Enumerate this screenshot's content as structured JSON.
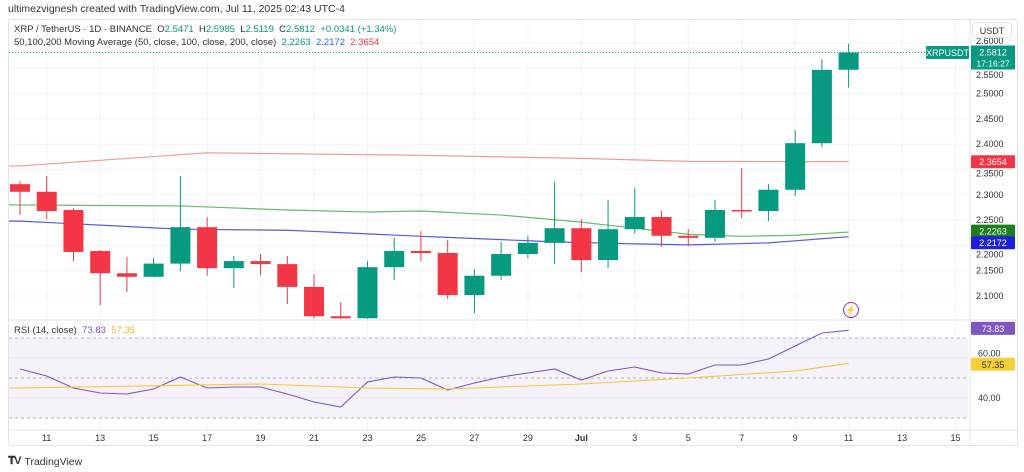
{
  "credit": "ultimezvignesh created with TradingView.com, Jul 11, 2025 02:43 UTC-4",
  "legend": {
    "symbol": "XRP / TetherUS · 1D · BINANCE",
    "o_label": "O",
    "o": "2.5471",
    "h_label": "H",
    "h": "2.5985",
    "l_label": "L",
    "l": "2.5119",
    "c_label": "C",
    "c": "2.5812",
    "change": "+0.0341 (+1.34%)",
    "ma_title": "50,100,200 Moving Average (50, close, 100, close, 200, close)",
    "ma50": "2.2263",
    "ma100": "2.2172",
    "ma200": "2.3654",
    "rsi_title": "RSI (14, close)",
    "rsi": "73.83",
    "rsi_ma": "57.35"
  },
  "price_axis": {
    "currency": "USDT",
    "ticks": [
      "2.1000",
      "2.1500",
      "2.2000",
      "2.2500",
      "2.3000",
      "2.3500",
      "2.4000",
      "2.4500",
      "2.5000",
      "2.5500",
      "2.6000"
    ],
    "symbol_badge": "XRPUSDT",
    "last_price": "2.5812",
    "countdown": "17:16:27",
    "ma200_badge": "2.3654",
    "ma50_badge": "2.2263",
    "ma100_badge": "2.2172"
  },
  "rsi_axis": {
    "ticks": [
      "40.00",
      "60.00"
    ],
    "rsi_badge": "73.83",
    "rsi_ma_badge": "57.35"
  },
  "date_axis": [
    "11",
    "13",
    "15",
    "17",
    "19",
    "21",
    "23",
    "25",
    "27",
    "29",
    "Jul",
    "3",
    "5",
    "7",
    "9",
    "11",
    "13",
    "15"
  ],
  "footer": {
    "logo": "TradingView"
  },
  "colors": {
    "up": "#089981",
    "down": "#f23645",
    "ma50": "#66bb6a",
    "ma100": "#5b5bd6",
    "ma200": "#ef9a9a",
    "rsi": "#7e57c2",
    "rsi_ma": "#f5c842"
  },
  "icons": {
    "alert": "lightning-icon",
    "logo": "tradingview-logo-icon"
  },
  "chart_data": {
    "type": "candlestick",
    "start_date": "2025-06-10",
    "interval": "1D",
    "price_range": [
      2.05,
      2.61
    ],
    "candles": [
      {
        "date": "Jun 10",
        "o": 2.321,
        "h": 2.327,
        "l": 2.26,
        "c": 2.306
      },
      {
        "date": "Jun 11",
        "o": 2.306,
        "h": 2.337,
        "l": 2.252,
        "c": 2.268
      },
      {
        "date": "Jun 12",
        "o": 2.27,
        "h": 2.274,
        "l": 2.169,
        "c": 2.187
      },
      {
        "date": "Jun 13",
        "o": 2.189,
        "h": 2.191,
        "l": 2.082,
        "c": 2.145
      },
      {
        "date": "Jun 14",
        "o": 2.145,
        "h": 2.177,
        "l": 2.108,
        "c": 2.138
      },
      {
        "date": "Jun 15",
        "o": 2.138,
        "h": 2.175,
        "l": 2.137,
        "c": 2.164
      },
      {
        "date": "Jun 16",
        "o": 2.164,
        "h": 2.337,
        "l": 2.149,
        "c": 2.236
      },
      {
        "date": "Jun 17",
        "o": 2.236,
        "h": 2.256,
        "l": 2.14,
        "c": 2.155
      },
      {
        "date": "Jun 18",
        "o": 2.155,
        "h": 2.179,
        "l": 2.116,
        "c": 2.169
      },
      {
        "date": "Jun 19",
        "o": 2.169,
        "h": 2.183,
        "l": 2.141,
        "c": 2.163
      },
      {
        "date": "Jun 20",
        "o": 2.163,
        "h": 2.179,
        "l": 2.084,
        "c": 2.118
      },
      {
        "date": "Jun 21",
        "o": 2.118,
        "h": 2.143,
        "l": 2.055,
        "c": 2.06
      },
      {
        "date": "Jun 22",
        "o": 2.06,
        "h": 2.088,
        "l": 2.055,
        "c": 2.056
      },
      {
        "date": "Jun 23",
        "o": 2.056,
        "h": 2.169,
        "l": 2.055,
        "c": 2.157
      },
      {
        "date": "Jun 24",
        "o": 2.157,
        "h": 2.215,
        "l": 2.132,
        "c": 2.189
      },
      {
        "date": "Jun 25",
        "o": 2.189,
        "h": 2.228,
        "l": 2.169,
        "c": 2.185
      },
      {
        "date": "Jun 26",
        "o": 2.185,
        "h": 2.211,
        "l": 2.094,
        "c": 2.102
      },
      {
        "date": "Jun 27",
        "o": 2.102,
        "h": 2.153,
        "l": 2.066,
        "c": 2.14
      },
      {
        "date": "Jun 28",
        "o": 2.14,
        "h": 2.207,
        "l": 2.132,
        "c": 2.183
      },
      {
        "date": "Jun 29",
        "o": 2.183,
        "h": 2.219,
        "l": 2.175,
        "c": 2.205
      },
      {
        "date": "Jun 30",
        "o": 2.205,
        "h": 2.325,
        "l": 2.163,
        "c": 2.234
      },
      {
        "date": "Jul 1",
        "o": 2.234,
        "h": 2.252,
        "l": 2.147,
        "c": 2.171
      },
      {
        "date": "Jul 2",
        "o": 2.171,
        "h": 2.29,
        "l": 2.155,
        "c": 2.232
      },
      {
        "date": "Jul 3",
        "o": 2.232,
        "h": 2.314,
        "l": 2.224,
        "c": 2.256
      },
      {
        "date": "Jul 4",
        "o": 2.256,
        "h": 2.268,
        "l": 2.197,
        "c": 2.219
      },
      {
        "date": "Jul 5",
        "o": 2.219,
        "h": 2.232,
        "l": 2.199,
        "c": 2.215
      },
      {
        "date": "Jul 6",
        "o": 2.215,
        "h": 2.29,
        "l": 2.207,
        "c": 2.27
      },
      {
        "date": "Jul 7",
        "o": 2.27,
        "h": 2.353,
        "l": 2.254,
        "c": 2.268
      },
      {
        "date": "Jul 8",
        "o": 2.268,
        "h": 2.321,
        "l": 2.248,
        "c": 2.31
      },
      {
        "date": "Jul 9",
        "o": 2.31,
        "h": 2.428,
        "l": 2.298,
        "c": 2.402
      },
      {
        "date": "Jul 10",
        "o": 2.402,
        "h": 2.568,
        "l": 2.394,
        "c": 2.547
      },
      {
        "date": "Jul 11",
        "o": 2.5471,
        "h": 2.5985,
        "l": 2.5119,
        "c": 2.5812
      }
    ],
    "moving_averages": [
      {
        "name": "MA 50",
        "points": [
          [
            0,
            2.28
          ],
          [
            6,
            2.278
          ],
          [
            10,
            2.27
          ],
          [
            13,
            2.266
          ],
          [
            15,
            2.268
          ],
          [
            18,
            2.26
          ],
          [
            21,
            2.246
          ],
          [
            23,
            2.234
          ],
          [
            25,
            2.222
          ],
          [
            27,
            2.218
          ],
          [
            29,
            2.22
          ],
          [
            31,
            2.2263
          ]
        ]
      },
      {
        "name": "MA 100",
        "points": [
          [
            0,
            2.248
          ],
          [
            3,
            2.24
          ],
          [
            6,
            2.232
          ],
          [
            10,
            2.23
          ],
          [
            15,
            2.218
          ],
          [
            20,
            2.207
          ],
          [
            23,
            2.203
          ],
          [
            25,
            2.201
          ],
          [
            28,
            2.205
          ],
          [
            31,
            2.2172
          ]
        ]
      },
      {
        "name": "MA 200",
        "points": [
          [
            0,
            2.357
          ],
          [
            7,
            2.383
          ],
          [
            15,
            2.378
          ],
          [
            21,
            2.372
          ],
          [
            25,
            2.366
          ],
          [
            31,
            2.3654
          ]
        ]
      }
    ],
    "rsi": {
      "period": 14,
      "levels": [
        30,
        50,
        70
      ],
      "range": [
        20,
        80
      ],
      "values": [
        54.5,
        51,
        45,
        42.5,
        42,
        44.5,
        50.5,
        45,
        45.5,
        45.5,
        42,
        38,
        35.5,
        48,
        50.5,
        50,
        44,
        47.5,
        50.5,
        52.5,
        54.5,
        49,
        53.5,
        55.5,
        52.5,
        52,
        56.5,
        56.5,
        59.5,
        66,
        72.5,
        73.83
      ],
      "ma_points": [
        [
          0,
          45
        ],
        [
          9,
          47
        ],
        [
          13,
          45
        ],
        [
          16,
          44.5
        ],
        [
          21,
          47
        ],
        [
          25,
          50
        ],
        [
          29,
          53.5
        ],
        [
          31,
          57.35
        ]
      ]
    }
  }
}
